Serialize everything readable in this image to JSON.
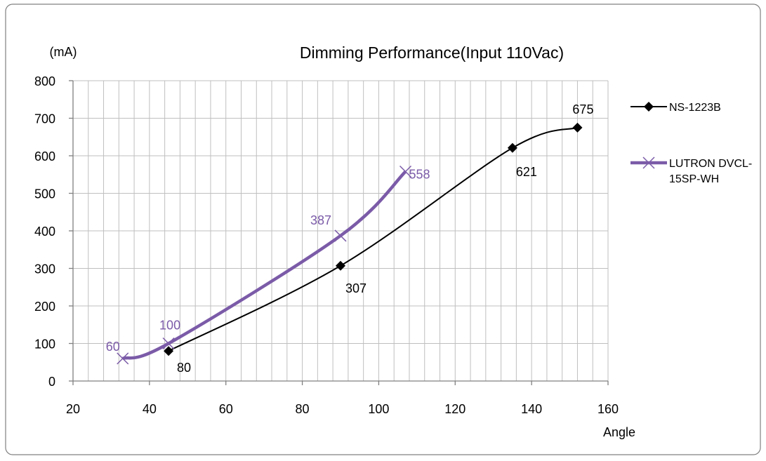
{
  "chart_data": {
    "type": "line",
    "title": "Dimming Performance(Input 110Vac)",
    "ylabel": "(mA)",
    "xlabel": "Angle",
    "xlim": [
      20,
      160
    ],
    "ylim": [
      0,
      800
    ],
    "x_major_ticks": [
      20,
      40,
      60,
      80,
      100,
      120,
      140,
      160
    ],
    "y_major_ticks": [
      0,
      100,
      200,
      300,
      400,
      500,
      600,
      700,
      800
    ],
    "grid": {
      "vertical_minor_step": 4,
      "horizontal_step": 100
    },
    "legend_position": "right",
    "series": [
      {
        "name": "NS-1223B",
        "color": "#000000",
        "marker": "diamond",
        "smooth": true,
        "points": [
          {
            "x": 45,
            "y": 80,
            "label": "80"
          },
          {
            "x": 90,
            "y": 307,
            "label": "307"
          },
          {
            "x": 135,
            "y": 621,
            "label": "621"
          },
          {
            "x": 152,
            "y": 675,
            "label": "675"
          }
        ]
      },
      {
        "name": "LUTRON DVCL-15SP-WH",
        "legend_lines": [
          "LUTRON DVCL-",
          "15SP-WH"
        ],
        "color": "#7b5ba8",
        "marker": "x",
        "smooth": true,
        "points": [
          {
            "x": 33,
            "y": 60,
            "label": "60"
          },
          {
            "x": 45,
            "y": 100,
            "label": "100"
          },
          {
            "x": 90,
            "y": 387,
            "label": "387"
          },
          {
            "x": 107,
            "y": 558,
            "label": "558"
          }
        ]
      }
    ]
  }
}
